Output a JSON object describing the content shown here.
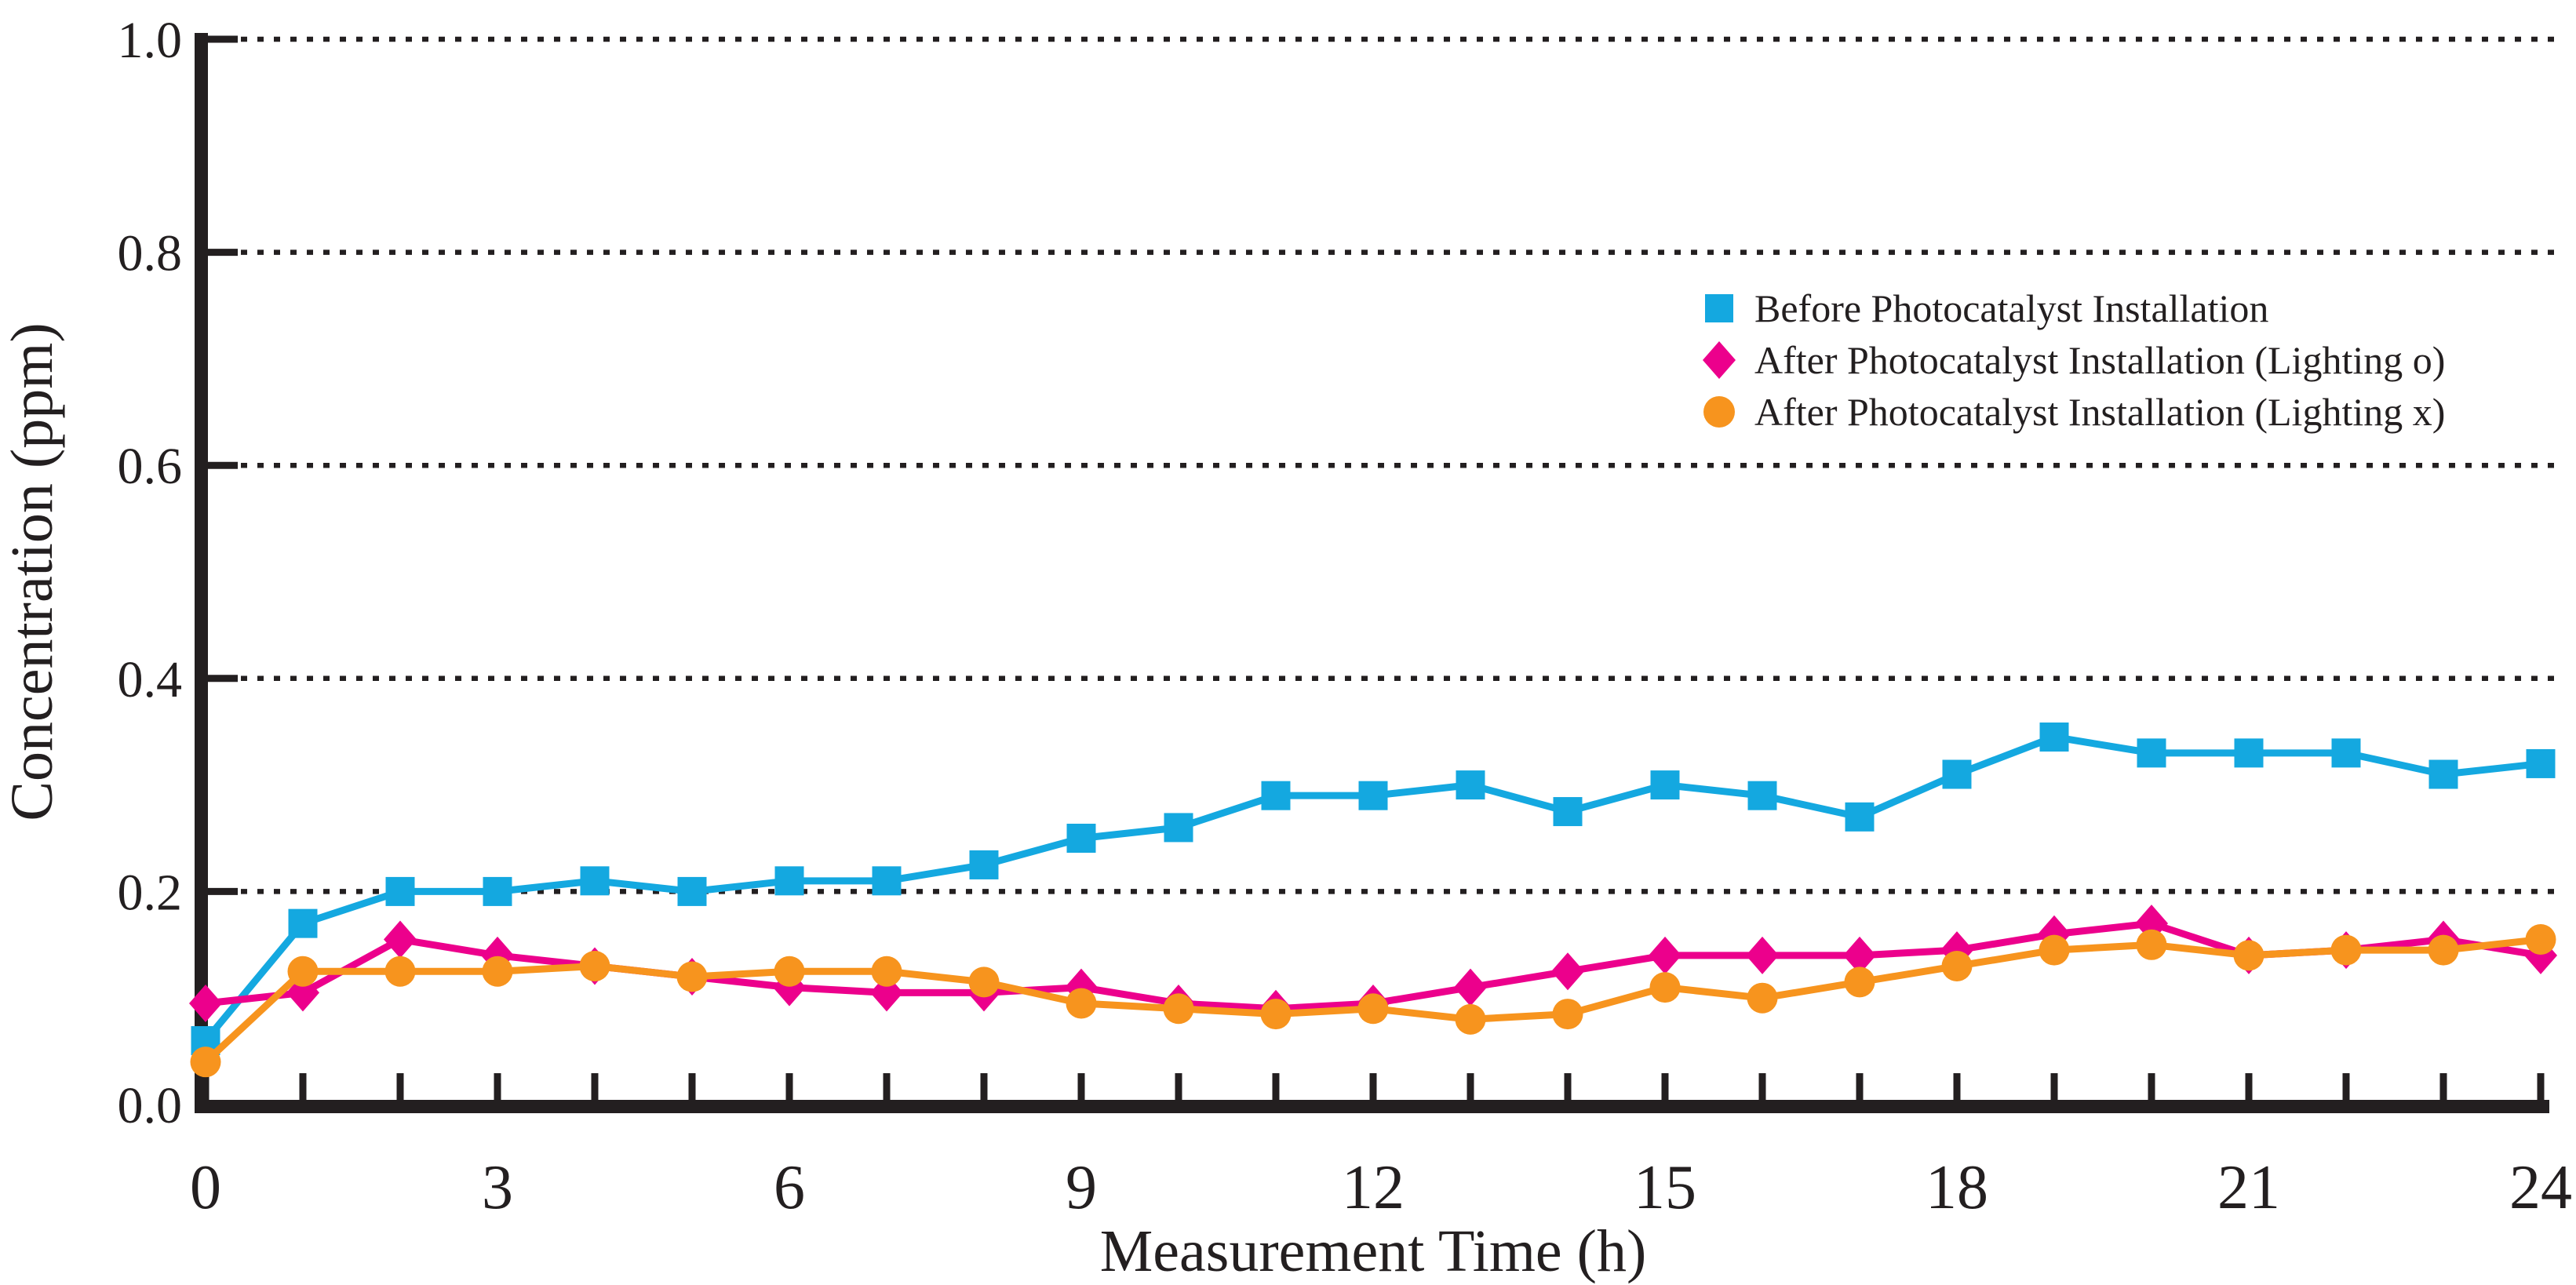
{
  "chart_data": {
    "type": "line",
    "title": "",
    "xlabel": "Measurement Time (h)",
    "ylabel": "Concentration (ppm)",
    "xlim": [
      0,
      24
    ],
    "ylim": [
      0.0,
      1.0
    ],
    "grid": "horizontal dotted gridlines at each y tick",
    "legend_position": "upper right inside plot",
    "x_tick_hours": [
      0,
      3,
      6,
      9,
      12,
      15,
      18,
      21,
      24
    ],
    "x_tick_labels": [
      "0",
      "3",
      "6",
      "9",
      "12",
      "15",
      "18",
      "21",
      "24"
    ],
    "x_minor_tick_every_hours": 1,
    "y_ticks": [
      0.0,
      0.2,
      0.4,
      0.6,
      0.8,
      1.0
    ],
    "y_tick_labels": [
      "0.0",
      "0.2",
      "0.4",
      "0.6",
      "0.8",
      "1.0"
    ],
    "x": [
      0,
      1,
      2,
      3,
      4,
      5,
      6,
      7,
      8,
      9,
      10,
      11,
      12,
      13,
      14,
      15,
      16,
      17,
      18,
      19,
      20,
      21,
      22,
      23,
      24
    ],
    "series": [
      {
        "name": "Before Photocatalyst Installation",
        "color": "#14a8e0",
        "marker": "square",
        "values": [
          0.06,
          0.17,
          0.2,
          0.2,
          0.21,
          0.2,
          0.21,
          0.21,
          0.225,
          0.25,
          0.26,
          0.29,
          0.29,
          0.3,
          0.275,
          0.3,
          0.29,
          0.27,
          0.31,
          0.345,
          0.33,
          0.33,
          0.33,
          0.31,
          0.32
        ]
      },
      {
        "name": "After Photocatalyst Installation (Lighting o)",
        "color": "#ec008c",
        "marker": "diamond",
        "values": [
          0.095,
          0.105,
          0.155,
          0.14,
          0.13,
          0.12,
          0.11,
          0.105,
          0.105,
          0.11,
          0.095,
          0.09,
          0.095,
          0.11,
          0.125,
          0.14,
          0.14,
          0.14,
          0.145,
          0.16,
          0.17,
          0.14,
          0.145,
          0.155,
          0.14
        ]
      },
      {
        "name": "After Photocatalyst Installation (Lighting x)",
        "color": "#f7941e",
        "marker": "circle",
        "values": [
          0.04,
          0.125,
          0.125,
          0.125,
          0.13,
          0.12,
          0.125,
          0.125,
          0.115,
          0.095,
          0.09,
          0.085,
          0.09,
          0.08,
          0.085,
          0.11,
          0.1,
          0.115,
          0.13,
          0.145,
          0.15,
          0.14,
          0.145,
          0.145,
          0.155
        ]
      }
    ],
    "axis_color": "#231f20"
  }
}
